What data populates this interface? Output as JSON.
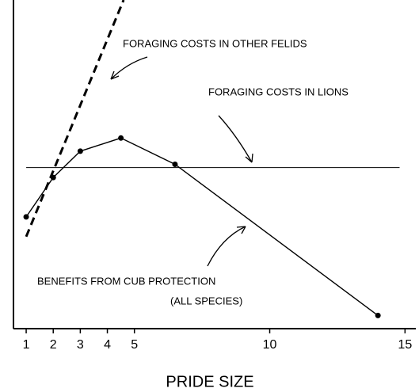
{
  "chart_data": {
    "type": "line",
    "xlabel": "PRIDE SIZE",
    "xlim": [
      0.53,
      15.4
    ],
    "xticks": [
      1,
      2,
      3,
      4,
      5,
      10,
      15
    ],
    "ylim": [
      0,
      100
    ],
    "series": [
      {
        "color": "#000",
        "style": "solid",
        "markers": true,
        "x": [
          1,
          2,
          3,
          4.5,
          6.5,
          14
        ],
        "values": [
          34,
          46,
          54,
          58,
          50,
          4
        ]
      },
      {
        "color": "#000",
        "style": "thin",
        "markers": false,
        "x": [
          1,
          14.8
        ],
        "values": [
          49,
          49
        ]
      },
      {
        "color": "#000",
        "style": "dashed",
        "markers": false,
        "x": [
          1,
          4.6
        ],
        "values": [
          28,
          100
        ]
      }
    ],
    "annotations": [
      "FORAGING COSTS IN OTHER FELIDS",
      "FORAGING COSTS IN LIONS",
      "BENEFITS FROM CUB PROTECTION",
      "(ALL SPECIES)"
    ]
  }
}
